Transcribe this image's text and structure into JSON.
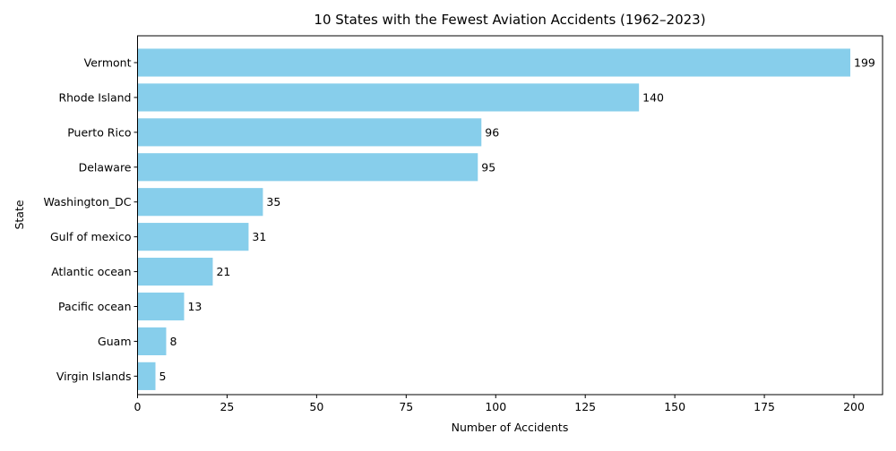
{
  "chart_data": {
    "type": "bar",
    "orientation": "horizontal",
    "title": "10 States with the Fewest Aviation Accidents (1962–2023)",
    "xlabel": "Number of Accidents",
    "ylabel": "State",
    "xlim": [
      0,
      208
    ],
    "xticks": [
      0,
      25,
      50,
      75,
      100,
      125,
      150,
      175,
      200
    ],
    "grid": false,
    "legend": "none",
    "bar_color": "#87ceeb",
    "categories": [
      "Vermont",
      "Rhode Island",
      "Puerto Rico",
      "Delaware",
      "Washington_DC",
      "Gulf of mexico",
      "Atlantic ocean",
      "Pacific ocean",
      "Guam",
      "Virgin Islands"
    ],
    "values": [
      199,
      140,
      96,
      95,
      35,
      31,
      21,
      13,
      8,
      5
    ]
  }
}
